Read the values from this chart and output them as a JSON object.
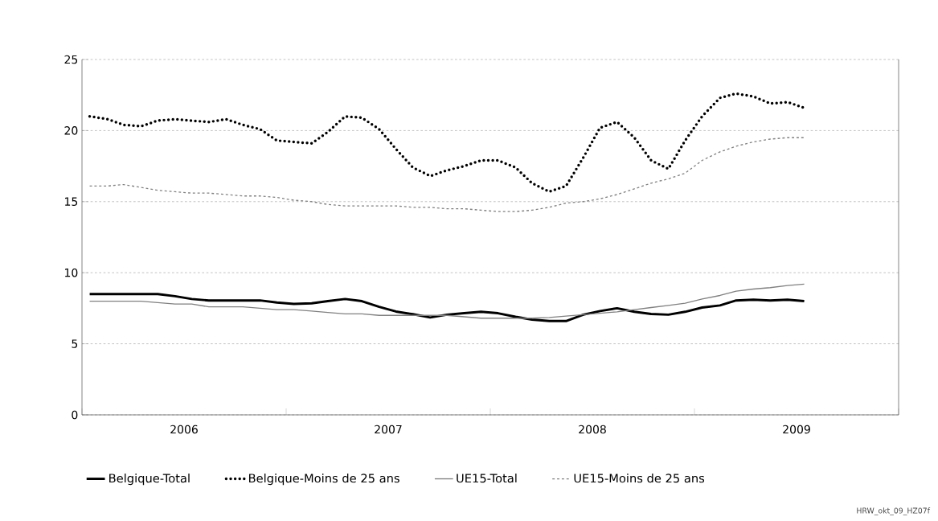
{
  "chart_data": {
    "type": "line",
    "x": [
      "2006-01-15",
      "2006-02-15",
      "2006-03-15",
      "2006-04-15",
      "2006-05-15",
      "2006-06-15",
      "2006-07-15",
      "2006-08-15",
      "2006-09-15",
      "2006-10-15",
      "2006-11-15",
      "2006-12-15",
      "2007-01-15",
      "2007-02-15",
      "2007-03-15",
      "2007-04-15",
      "2007-05-15",
      "2007-06-15",
      "2007-07-15",
      "2007-08-15",
      "2007-09-15",
      "2007-10-15",
      "2007-11-15",
      "2007-12-15",
      "2008-01-15",
      "2008-02-15",
      "2008-03-15",
      "2008-04-15",
      "2008-05-15",
      "2008-06-15",
      "2008-07-15",
      "2008-08-15",
      "2008-09-15",
      "2008-10-15",
      "2008-11-15",
      "2008-12-15",
      "2009-01-15",
      "2009-02-15",
      "2009-03-15",
      "2009-04-15",
      "2009-05-15",
      "2009-06-15",
      "2009-07-15"
    ],
    "series": [
      {
        "name": "Belgique-Total",
        "color": "#000000",
        "line_style": "solid",
        "values": [
          8.5,
          8.5,
          8.5,
          8.5,
          8.5,
          8.35,
          8.15,
          8.05,
          8.05,
          8.05,
          8.05,
          7.9,
          7.8,
          7.85,
          8.0,
          8.15,
          8.0,
          7.6,
          7.27,
          7.08,
          6.85,
          7.05,
          7.15,
          7.25,
          7.15,
          6.9,
          6.7,
          6.6,
          6.6,
          7.05,
          7.3,
          7.5,
          7.25,
          7.1,
          7.05,
          7.25,
          7.55,
          7.7,
          8.05,
          8.1,
          8.05,
          8.1,
          8.0
        ]
      },
      {
        "name": "Belgique-Moins de 25 ans",
        "color": "#000000",
        "line_style": "dotted",
        "values": [
          21.0,
          20.8,
          20.4,
          20.3,
          20.7,
          20.8,
          20.7,
          20.6,
          20.8,
          20.4,
          20.1,
          19.3,
          19.2,
          19.1,
          19.9,
          21.0,
          20.9,
          20.1,
          18.7,
          17.4,
          16.8,
          17.2,
          17.5,
          17.9,
          17.9,
          17.4,
          16.3,
          15.7,
          16.1,
          18.1,
          20.2,
          20.6,
          19.5,
          17.9,
          17.3,
          19.3,
          21.0,
          22.3,
          22.6,
          22.4,
          21.9,
          22.0,
          21.6
        ]
      },
      {
        "name": "UE15-Total",
        "color": "#808080",
        "line_style": "solid",
        "values": [
          8.0,
          8.0,
          8.0,
          8.0,
          7.9,
          7.8,
          7.8,
          7.6,
          7.6,
          7.6,
          7.5,
          7.4,
          7.4,
          7.3,
          7.2,
          7.1,
          7.1,
          7.0,
          7.0,
          7.0,
          7.0,
          7.0,
          6.9,
          6.8,
          6.8,
          6.8,
          6.8,
          6.85,
          6.95,
          7.05,
          7.15,
          7.25,
          7.4,
          7.55,
          7.7,
          7.85,
          8.15,
          8.4,
          8.7,
          8.85,
          8.95,
          9.1,
          9.2
        ]
      },
      {
        "name": "UE15-Moins de 25 ans",
        "color": "#808080",
        "line_style": "dashed",
        "values": [
          16.1,
          16.1,
          16.2,
          16.0,
          15.8,
          15.7,
          15.6,
          15.6,
          15.5,
          15.4,
          15.4,
          15.3,
          15.1,
          15.0,
          14.8,
          14.7,
          14.7,
          14.7,
          14.7,
          14.6,
          14.6,
          14.5,
          14.5,
          14.4,
          14.3,
          14.3,
          14.4,
          14.6,
          14.9,
          15.0,
          15.2,
          15.5,
          15.9,
          16.3,
          16.6,
          17.0,
          17.9,
          18.5,
          18.9,
          19.2,
          19.4,
          19.5,
          19.5
        ]
      }
    ],
    "xlim": [
      "2006-01-01",
      "2010-01-01"
    ],
    "xticks": [
      {
        "value": "2006-01-01",
        "label": null
      },
      {
        "value": "2006-07-01",
        "label": "2006"
      },
      {
        "value": "2007-01-01",
        "label": null
      },
      {
        "value": "2007-07-01",
        "label": "2007"
      },
      {
        "value": "2008-01-01",
        "label": null
      },
      {
        "value": "2008-07-01",
        "label": "2008"
      },
      {
        "value": "2009-01-01",
        "label": null
      },
      {
        "value": "2009-07-01",
        "label": "2009"
      },
      {
        "value": "2010-01-01",
        "label": null
      }
    ],
    "ylim": [
      0,
      25
    ],
    "yticks": [
      0,
      5,
      10,
      15,
      20,
      25
    ],
    "grid": "y",
    "legend": "bottom",
    "annotations": [
      "HRW_okt_09_HZ07f"
    ]
  }
}
